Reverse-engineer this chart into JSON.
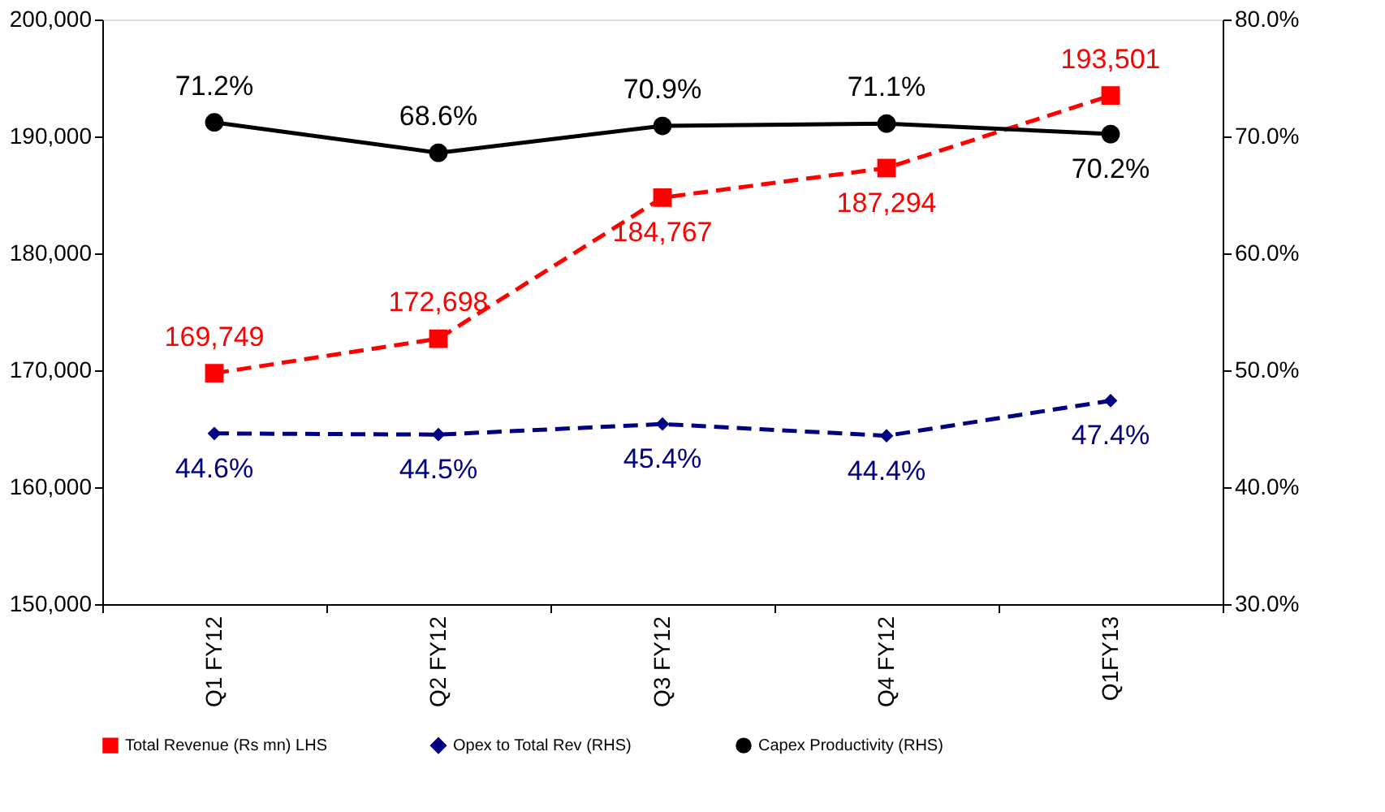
{
  "chart_data": {
    "type": "line",
    "categories": [
      "Q1 FY12",
      "Q2 FY12",
      "Q3 FY12",
      "Q4 FY12",
      "Q1FY13"
    ],
    "series": [
      {
        "name": "Total Revenue (Rs mn) LHS",
        "color": "#ff0000",
        "marker": "square",
        "line_style": "dashed",
        "values": [
          169749,
          172698,
          184767,
          187294,
          193501
        ],
        "value_labels": [
          "169,749",
          "172,698",
          "184,767",
          "187,294",
          "193,501"
        ]
      },
      {
        "name": "Opex to Total Rev (RHS)",
        "color": "#000080",
        "marker": "diamond",
        "line_style": "dashed",
        "axis": "y2",
        "values": [
          44.6,
          44.5,
          45.4,
          44.4,
          47.4
        ],
        "value_labels": [
          "44.6%",
          "44.5%",
          "45.4%",
          "44.4%",
          "47.4%"
        ]
      },
      {
        "name": "Capex Productivity (RHS)",
        "color": "#000000",
        "marker": "circle",
        "line_style": "solid",
        "axis": "y2",
        "values": [
          71.2,
          68.6,
          70.9,
          71.1,
          70.2
        ],
        "value_labels": [
          "71.2%",
          "68.6%",
          "70.9%",
          "71.1%",
          "70.2%"
        ]
      }
    ],
    "ylim": [
      150000,
      200000
    ],
    "yticks": [
      {
        "value": 150000,
        "label": "150,000"
      },
      {
        "value": 160000,
        "label": "160,000"
      },
      {
        "value": 170000,
        "label": "170,000"
      },
      {
        "value": 180000,
        "label": "180,000"
      },
      {
        "value": 190000,
        "label": "190,000"
      },
      {
        "value": 200000,
        "label": "200,000"
      }
    ],
    "y2lim": [
      30,
      80
    ],
    "y2ticks": [
      {
        "value": 30,
        "label": "30.0%"
      },
      {
        "value": 40,
        "label": "40.0%"
      },
      {
        "value": 50,
        "label": "50.0%"
      },
      {
        "value": 60,
        "label": "60.0%"
      },
      {
        "value": 70,
        "label": "70.0%"
      },
      {
        "value": 80,
        "label": "80.0%"
      }
    ],
    "legend": "bottom",
    "grid": false
  }
}
